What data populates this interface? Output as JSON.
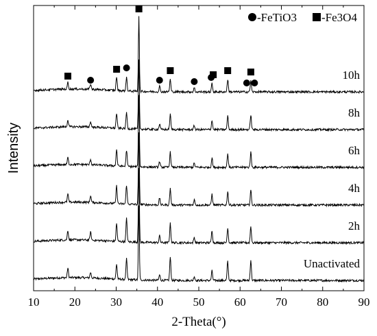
{
  "chart_data": {
    "type": "line",
    "title": "",
    "xlabel": "2-Theta(°)",
    "ylabel": "Intensity",
    "xlim": [
      10,
      90
    ],
    "xticks": [
      "10",
      "20",
      "30",
      "40",
      "50",
      "60",
      "70",
      "80",
      "90"
    ],
    "grid": false,
    "legend": {
      "placement": "top-right",
      "entries": [
        {
          "marker": "circle",
          "label": "-FeTiO3"
        },
        {
          "marker": "square",
          "label": "-Fe3O4"
        }
      ]
    },
    "fe3o4_peaks": [
      18.3,
      30.1,
      35.5,
      43.1,
      53.5,
      57.0,
      62.6
    ],
    "fetio3_peaks": [
      23.8,
      32.5,
      40.5,
      48.9,
      53.0,
      61.6,
      63.5
    ],
    "series": [
      {
        "name": "Unactivated",
        "baseline": 0,
        "peaks": [
          {
            "x": 18.3,
            "h": 14
          },
          {
            "x": 23.8,
            "h": 8
          },
          {
            "x": 30.1,
            "h": 22
          },
          {
            "x": 32.5,
            "h": 30
          },
          {
            "x": 35.5,
            "h": 108
          },
          {
            "x": 40.5,
            "h": 8
          },
          {
            "x": 43.1,
            "h": 34
          },
          {
            "x": 48.9,
            "h": 6
          },
          {
            "x": 53.2,
            "h": 14
          },
          {
            "x": 57.0,
            "h": 28
          },
          {
            "x": 62.6,
            "h": 30
          }
        ]
      },
      {
        "name": "2h",
        "baseline": 55,
        "peaks": [
          {
            "x": 18.3,
            "h": 14
          },
          {
            "x": 23.8,
            "h": 12
          },
          {
            "x": 30.1,
            "h": 26
          },
          {
            "x": 32.5,
            "h": 34
          },
          {
            "x": 35.5,
            "h": 108
          },
          {
            "x": 40.5,
            "h": 10
          },
          {
            "x": 43.1,
            "h": 28
          },
          {
            "x": 48.9,
            "h": 8
          },
          {
            "x": 53.2,
            "h": 18
          },
          {
            "x": 57.0,
            "h": 22
          },
          {
            "x": 62.6,
            "h": 24
          }
        ]
      },
      {
        "name": "4h",
        "baseline": 110,
        "peaks": [
          {
            "x": 18.3,
            "h": 12
          },
          {
            "x": 23.8,
            "h": 10
          },
          {
            "x": 30.1,
            "h": 26
          },
          {
            "x": 32.5,
            "h": 28
          },
          {
            "x": 35.5,
            "h": 104
          },
          {
            "x": 40.5,
            "h": 10
          },
          {
            "x": 43.1,
            "h": 24
          },
          {
            "x": 48.9,
            "h": 8
          },
          {
            "x": 53.2,
            "h": 16
          },
          {
            "x": 57.0,
            "h": 20
          },
          {
            "x": 62.6,
            "h": 22
          }
        ]
      },
      {
        "name": "6h",
        "baseline": 165,
        "peaks": [
          {
            "x": 18.3,
            "h": 10
          },
          {
            "x": 23.8,
            "h": 8
          },
          {
            "x": 30.1,
            "h": 24
          },
          {
            "x": 32.5,
            "h": 24
          },
          {
            "x": 35.5,
            "h": 104
          },
          {
            "x": 40.5,
            "h": 8
          },
          {
            "x": 43.1,
            "h": 22
          },
          {
            "x": 48.9,
            "h": 6
          },
          {
            "x": 53.2,
            "h": 14
          },
          {
            "x": 57.0,
            "h": 20
          },
          {
            "x": 62.6,
            "h": 22
          }
        ]
      },
      {
        "name": "8h",
        "baseline": 220,
        "peaks": [
          {
            "x": 18.3,
            "h": 10
          },
          {
            "x": 23.8,
            "h": 8
          },
          {
            "x": 30.1,
            "h": 22
          },
          {
            "x": 32.5,
            "h": 24
          },
          {
            "x": 35.5,
            "h": 100
          },
          {
            "x": 40.5,
            "h": 8
          },
          {
            "x": 43.1,
            "h": 22
          },
          {
            "x": 48.9,
            "h": 6
          },
          {
            "x": 53.2,
            "h": 14
          },
          {
            "x": 57.0,
            "h": 20
          },
          {
            "x": 62.6,
            "h": 22
          }
        ]
      },
      {
        "name": "10h",
        "baseline": 275,
        "peaks": [
          {
            "x": 18.3,
            "h": 10
          },
          {
            "x": 23.8,
            "h": 8
          },
          {
            "x": 30.1,
            "h": 20
          },
          {
            "x": 32.5,
            "h": 20
          },
          {
            "x": 35.5,
            "h": 110
          },
          {
            "x": 40.5,
            "h": 8
          },
          {
            "x": 43.1,
            "h": 18
          },
          {
            "x": 48.9,
            "h": 6
          },
          {
            "x": 53.2,
            "h": 12
          },
          {
            "x": 57.0,
            "h": 18
          },
          {
            "x": 62.6,
            "h": 16
          }
        ]
      }
    ]
  }
}
